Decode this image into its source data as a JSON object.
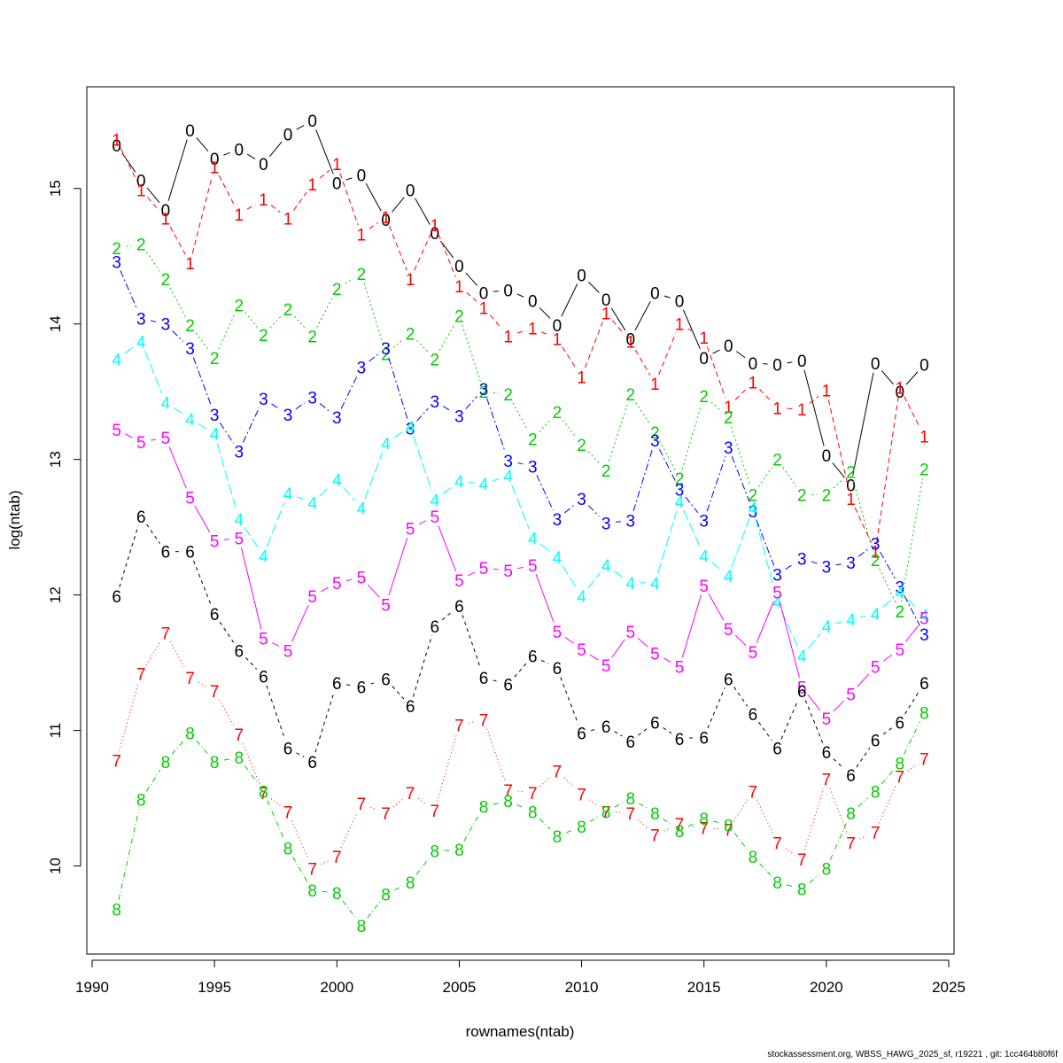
{
  "chart_data": {
    "type": "line",
    "title": "",
    "xlabel": "rownames(ntab)",
    "ylabel": "log(ntab)",
    "xlim": [
      1990,
      2025
    ],
    "ylim": [
      9.35,
      15.75
    ],
    "x_ticks": [
      1990,
      1995,
      2000,
      2005,
      2010,
      2015,
      2020,
      2025
    ],
    "y_ticks": [
      10,
      11,
      12,
      13,
      14,
      15
    ],
    "x": [
      1991,
      1992,
      1993,
      1994,
      1995,
      1996,
      1997,
      1998,
      1999,
      2000,
      2001,
      2002,
      2003,
      2004,
      2005,
      2006,
      2007,
      2008,
      2009,
      2010,
      2011,
      2012,
      2013,
      2014,
      2015,
      2016,
      2017,
      2018,
      2019,
      2020,
      2021,
      2022,
      2023,
      2024
    ],
    "series": [
      {
        "label": "0",
        "color": "#000000",
        "dash": "",
        "values": [
          15.32,
          15.06,
          14.84,
          15.43,
          15.22,
          15.29,
          15.18,
          15.4,
          15.5,
          15.04,
          15.1,
          14.77,
          14.99,
          14.67,
          14.43,
          14.23,
          14.25,
          14.17,
          13.99,
          14.36,
          14.18,
          13.89,
          14.23,
          14.17,
          13.75,
          13.84,
          13.71,
          13.7,
          13.73,
          13.03,
          12.81,
          13.71,
          13.5,
          13.7
        ]
      },
      {
        "label": "1",
        "color": "#ff0000",
        "dash": "6,4",
        "values": [
          15.36,
          14.99,
          14.78,
          14.45,
          15.16,
          14.81,
          14.92,
          14.78,
          15.03,
          15.18,
          14.66,
          14.79,
          14.33,
          14.73,
          14.28,
          14.12,
          13.91,
          13.97,
          13.89,
          13.61,
          14.08,
          13.87,
          13.56,
          14.0,
          13.9,
          13.39,
          13.57,
          13.38,
          13.37,
          13.51,
          12.71,
          12.32,
          13.53,
          13.17
        ]
      },
      {
        "label": "2",
        "color": "#00cd00",
        "dash": "2,3",
        "values": [
          14.56,
          14.59,
          14.33,
          13.99,
          13.75,
          14.14,
          13.92,
          14.11,
          13.91,
          14.26,
          14.37,
          13.78,
          13.93,
          13.74,
          14.06,
          13.5,
          13.48,
          13.15,
          13.35,
          13.11,
          12.92,
          13.48,
          13.2,
          12.86,
          13.47,
          13.31,
          12.74,
          13.0,
          12.74,
          12.74,
          12.91,
          12.26,
          11.88,
          12.93
        ]
      },
      {
        "label": "3",
        "color": "#0000ff",
        "dash": "8,3,2,3",
        "values": [
          14.46,
          14.04,
          14.0,
          13.82,
          13.33,
          13.06,
          13.45,
          13.33,
          13.46,
          13.31,
          13.68,
          13.82,
          13.23,
          13.43,
          13.32,
          13.52,
          12.99,
          12.95,
          12.56,
          12.71,
          12.53,
          12.55,
          13.14,
          12.78,
          12.55,
          13.09,
          12.62,
          12.15,
          12.27,
          12.21,
          12.24,
          12.38,
          12.06,
          11.71
        ]
      },
      {
        "label": "4",
        "color": "#00ffff",
        "dash": "12,4",
        "values": [
          13.74,
          13.87,
          13.42,
          13.3,
          13.19,
          12.56,
          12.29,
          12.75,
          12.68,
          12.85,
          12.64,
          13.12,
          13.24,
          12.7,
          12.84,
          12.82,
          12.88,
          12.42,
          12.28,
          11.99,
          12.22,
          12.09,
          12.09,
          12.69,
          12.29,
          12.14,
          12.64,
          11.95,
          11.55,
          11.77,
          11.82,
          11.86,
          12.02,
          11.85
        ]
      },
      {
        "label": "5",
        "color": "#ff00ff",
        "dash": "",
        "values": [
          13.22,
          13.13,
          13.16,
          12.72,
          12.4,
          12.42,
          11.68,
          11.59,
          11.99,
          12.09,
          12.13,
          11.93,
          12.49,
          12.58,
          12.11,
          12.2,
          12.18,
          12.22,
          11.73,
          11.6,
          11.48,
          11.73,
          11.57,
          11.47,
          12.07,
          11.75,
          11.58,
          12.02,
          11.32,
          11.09,
          11.27,
          11.47,
          11.6,
          11.83
        ]
      },
      {
        "label": "6",
        "color": "#000000",
        "dash": "4,4",
        "values": [
          11.99,
          12.58,
          12.32,
          12.32,
          11.86,
          11.59,
          11.4,
          10.87,
          10.77,
          11.35,
          11.32,
          11.38,
          11.18,
          11.77,
          11.92,
          11.39,
          11.34,
          11.55,
          11.46,
          10.98,
          11.03,
          10.92,
          11.06,
          10.94,
          10.95,
          11.38,
          11.12,
          10.87,
          11.29,
          10.84,
          10.67,
          10.93,
          11.06,
          11.35
        ]
      },
      {
        "label": "7",
        "color": "#ff0000",
        "dash": "1,3",
        "values": [
          10.78,
          11.42,
          11.72,
          11.39,
          11.29,
          10.97,
          10.54,
          10.4,
          9.98,
          10.07,
          10.46,
          10.39,
          10.54,
          10.41,
          11.04,
          11.08,
          10.56,
          10.54,
          10.7,
          10.53,
          10.4,
          10.39,
          10.23,
          10.31,
          10.28,
          10.27,
          10.55,
          10.17,
          10.05,
          10.64,
          10.17,
          10.25,
          10.66,
          10.79
        ]
      },
      {
        "label": "8",
        "color": "#00cd00",
        "dash": "6,3,1,3",
        "values": [
          9.68,
          10.49,
          10.77,
          10.98,
          10.77,
          10.8,
          10.55,
          10.13,
          9.82,
          9.8,
          9.56,
          9.79,
          9.88,
          10.11,
          10.12,
          10.44,
          10.48,
          10.4,
          10.22,
          10.29,
          10.4,
          10.5,
          10.39,
          10.26,
          10.35,
          10.3,
          10.07,
          9.88,
          9.83,
          9.98,
          10.39,
          10.55,
          10.76,
          11.13
        ]
      }
    ]
  },
  "footer": "stockassessment.org, WBSS_HAWG_2025_sf, r19221 , git: 1cc464b80f6f"
}
